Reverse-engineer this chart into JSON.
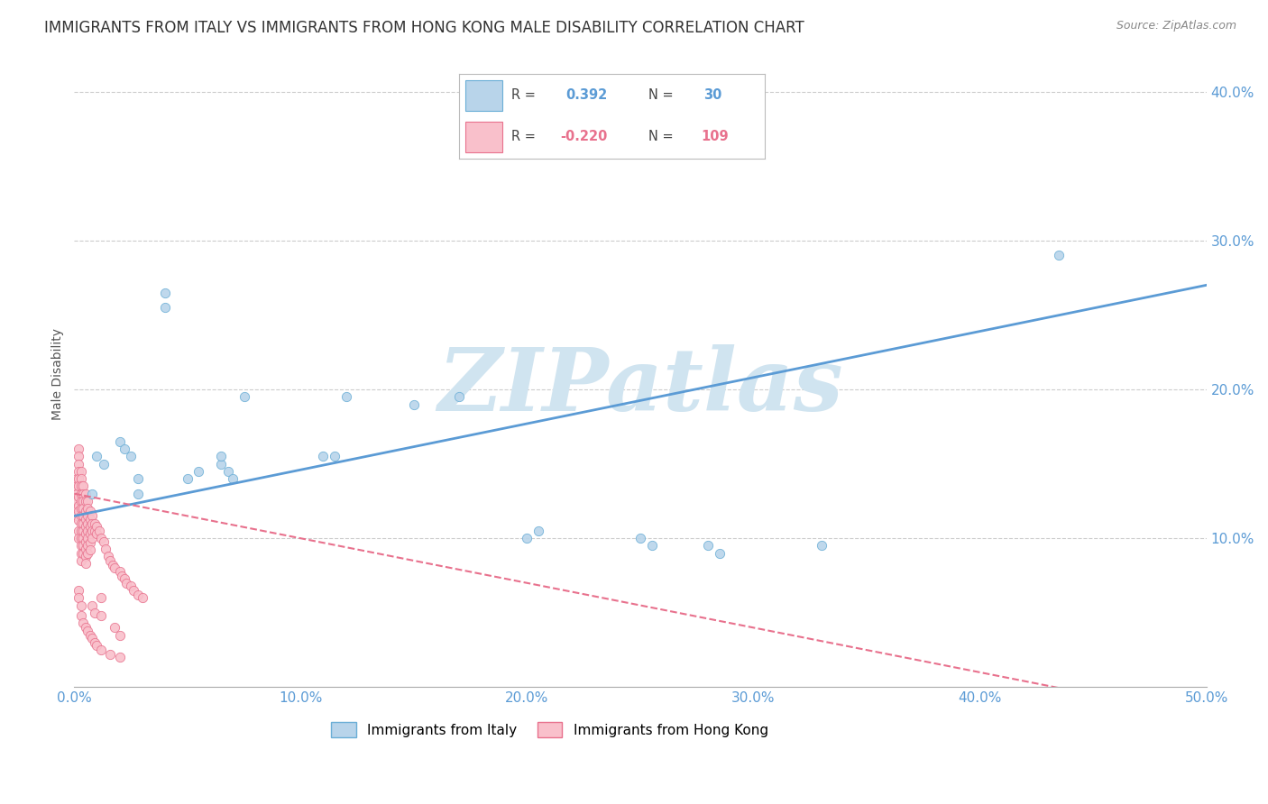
{
  "title": "IMMIGRANTS FROM ITALY VS IMMIGRANTS FROM HONG KONG MALE DISABILITY CORRELATION CHART",
  "source": "Source: ZipAtlas.com",
  "ylabel": "Male Disability",
  "xlim": [
    0.0,
    0.5
  ],
  "ylim": [
    0.0,
    0.42
  ],
  "xticks": [
    0.0,
    0.1,
    0.2,
    0.3,
    0.4,
    0.5
  ],
  "yticks": [
    0.1,
    0.2,
    0.3,
    0.4
  ],
  "watermark": "ZIPatlas",
  "italy_scatter": [
    [
      0.008,
      0.13
    ],
    [
      0.01,
      0.155
    ],
    [
      0.013,
      0.15
    ],
    [
      0.02,
      0.165
    ],
    [
      0.022,
      0.16
    ],
    [
      0.025,
      0.155
    ],
    [
      0.028,
      0.14
    ],
    [
      0.028,
      0.13
    ],
    [
      0.04,
      0.265
    ],
    [
      0.04,
      0.255
    ],
    [
      0.05,
      0.14
    ],
    [
      0.055,
      0.145
    ],
    [
      0.065,
      0.15
    ],
    [
      0.065,
      0.155
    ],
    [
      0.068,
      0.145
    ],
    [
      0.07,
      0.14
    ],
    [
      0.075,
      0.195
    ],
    [
      0.11,
      0.155
    ],
    [
      0.115,
      0.155
    ],
    [
      0.12,
      0.195
    ],
    [
      0.15,
      0.19
    ],
    [
      0.17,
      0.195
    ],
    [
      0.2,
      0.1
    ],
    [
      0.205,
      0.105
    ],
    [
      0.25,
      0.1
    ],
    [
      0.255,
      0.095
    ],
    [
      0.28,
      0.095
    ],
    [
      0.285,
      0.09
    ],
    [
      0.33,
      0.095
    ],
    [
      0.435,
      0.29
    ]
  ],
  "hk_scatter": [
    [
      0.0,
      0.135
    ],
    [
      0.001,
      0.14
    ],
    [
      0.001,
      0.13
    ],
    [
      0.001,
      0.125
    ],
    [
      0.001,
      0.12
    ],
    [
      0.001,
      0.115
    ],
    [
      0.002,
      0.16
    ],
    [
      0.002,
      0.155
    ],
    [
      0.002,
      0.15
    ],
    [
      0.002,
      0.145
    ],
    [
      0.002,
      0.14
    ],
    [
      0.002,
      0.135
    ],
    [
      0.002,
      0.128
    ],
    [
      0.002,
      0.122
    ],
    [
      0.002,
      0.118
    ],
    [
      0.002,
      0.112
    ],
    [
      0.002,
      0.105
    ],
    [
      0.002,
      0.1
    ],
    [
      0.003,
      0.145
    ],
    [
      0.003,
      0.14
    ],
    [
      0.003,
      0.135
    ],
    [
      0.003,
      0.13
    ],
    [
      0.003,
      0.125
    ],
    [
      0.003,
      0.12
    ],
    [
      0.003,
      0.115
    ],
    [
      0.003,
      0.11
    ],
    [
      0.003,
      0.105
    ],
    [
      0.003,
      0.1
    ],
    [
      0.003,
      0.095
    ],
    [
      0.003,
      0.09
    ],
    [
      0.003,
      0.085
    ],
    [
      0.004,
      0.135
    ],
    [
      0.004,
      0.13
    ],
    [
      0.004,
      0.125
    ],
    [
      0.004,
      0.12
    ],
    [
      0.004,
      0.115
    ],
    [
      0.004,
      0.11
    ],
    [
      0.004,
      0.105
    ],
    [
      0.004,
      0.1
    ],
    [
      0.004,
      0.095
    ],
    [
      0.004,
      0.09
    ],
    [
      0.005,
      0.13
    ],
    [
      0.005,
      0.125
    ],
    [
      0.005,
      0.118
    ],
    [
      0.005,
      0.113
    ],
    [
      0.005,
      0.108
    ],
    [
      0.005,
      0.103
    ],
    [
      0.005,
      0.098
    ],
    [
      0.005,
      0.093
    ],
    [
      0.005,
      0.088
    ],
    [
      0.005,
      0.083
    ],
    [
      0.006,
      0.125
    ],
    [
      0.006,
      0.12
    ],
    [
      0.006,
      0.115
    ],
    [
      0.006,
      0.11
    ],
    [
      0.006,
      0.105
    ],
    [
      0.006,
      0.1
    ],
    [
      0.006,
      0.095
    ],
    [
      0.006,
      0.09
    ],
    [
      0.007,
      0.118
    ],
    [
      0.007,
      0.113
    ],
    [
      0.007,
      0.108
    ],
    [
      0.007,
      0.103
    ],
    [
      0.007,
      0.097
    ],
    [
      0.007,
      0.092
    ],
    [
      0.008,
      0.115
    ],
    [
      0.008,
      0.11
    ],
    [
      0.008,
      0.105
    ],
    [
      0.008,
      0.1
    ],
    [
      0.009,
      0.11
    ],
    [
      0.009,
      0.105
    ],
    [
      0.01,
      0.108
    ],
    [
      0.01,
      0.103
    ],
    [
      0.011,
      0.105
    ],
    [
      0.012,
      0.1
    ],
    [
      0.013,
      0.098
    ],
    [
      0.014,
      0.093
    ],
    [
      0.015,
      0.088
    ],
    [
      0.016,
      0.085
    ],
    [
      0.017,
      0.082
    ],
    [
      0.018,
      0.08
    ],
    [
      0.02,
      0.078
    ],
    [
      0.021,
      0.075
    ],
    [
      0.022,
      0.073
    ],
    [
      0.023,
      0.07
    ],
    [
      0.025,
      0.068
    ],
    [
      0.026,
      0.065
    ],
    [
      0.028,
      0.062
    ],
    [
      0.03,
      0.06
    ],
    [
      0.008,
      0.055
    ],
    [
      0.009,
      0.05
    ],
    [
      0.012,
      0.048
    ],
    [
      0.012,
      0.06
    ],
    [
      0.018,
      0.04
    ],
    [
      0.02,
      0.035
    ],
    [
      0.002,
      0.065
    ],
    [
      0.002,
      0.06
    ],
    [
      0.003,
      0.055
    ],
    [
      0.003,
      0.048
    ],
    [
      0.004,
      0.043
    ],
    [
      0.005,
      0.04
    ],
    [
      0.006,
      0.038
    ],
    [
      0.007,
      0.035
    ],
    [
      0.008,
      0.033
    ],
    [
      0.009,
      0.03
    ],
    [
      0.01,
      0.028
    ],
    [
      0.012,
      0.025
    ],
    [
      0.016,
      0.022
    ],
    [
      0.02,
      0.02
    ]
  ],
  "italy_color": "#b8d4ea",
  "italy_edge_color": "#6aaed6",
  "hk_color": "#f9c0cb",
  "hk_edge_color": "#e8718d",
  "italy_line_color": "#5b9bd5",
  "hk_line_color": "#e8718d",
  "scatter_size": 55,
  "background_color": "#ffffff",
  "grid_color": "#cccccc",
  "title_fontsize": 12,
  "axis_label_fontsize": 10,
  "tick_fontsize": 11,
  "watermark_color": "#d0e4f0",
  "watermark_fontsize": 70
}
